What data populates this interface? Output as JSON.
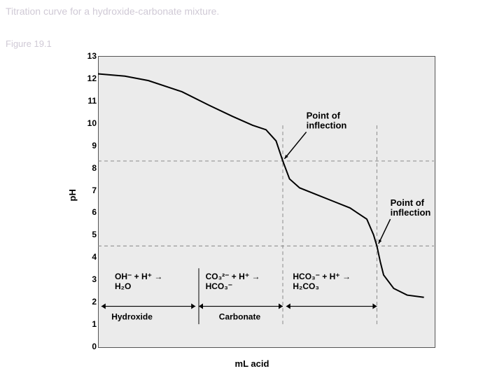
{
  "header": {
    "title": "Titration curve for a hydroxide-carbonate mixture.",
    "figure_label": "Figure 19.1"
  },
  "chart": {
    "type": "line",
    "ylabel": "pH",
    "xlabel": "mL acid",
    "ylim": [
      0,
      13
    ],
    "yticks": [
      0,
      1,
      2,
      3,
      4,
      5,
      6,
      7,
      8,
      9,
      10,
      11,
      12,
      13
    ],
    "background_color": "#ebebeb",
    "grid_color": "#555555",
    "curve_color": "#000000",
    "curve_width": 2,
    "dash_color": "#888888",
    "curve_points": [
      {
        "x": 0.0,
        "y": 12.2
      },
      {
        "x": 0.08,
        "y": 12.1
      },
      {
        "x": 0.15,
        "y": 11.9
      },
      {
        "x": 0.25,
        "y": 11.4
      },
      {
        "x": 0.33,
        "y": 10.8
      },
      {
        "x": 0.4,
        "y": 10.3
      },
      {
        "x": 0.46,
        "y": 9.9
      },
      {
        "x": 0.5,
        "y": 9.7
      },
      {
        "x": 0.53,
        "y": 9.2
      },
      {
        "x": 0.55,
        "y": 8.3
      },
      {
        "x": 0.57,
        "y": 7.5
      },
      {
        "x": 0.6,
        "y": 7.1
      },
      {
        "x": 0.65,
        "y": 6.8
      },
      {
        "x": 0.7,
        "y": 6.5
      },
      {
        "x": 0.75,
        "y": 6.2
      },
      {
        "x": 0.8,
        "y": 5.7
      },
      {
        "x": 0.82,
        "y": 5.0
      },
      {
        "x": 0.83,
        "y": 4.5
      },
      {
        "x": 0.84,
        "y": 3.8
      },
      {
        "x": 0.85,
        "y": 3.2
      },
      {
        "x": 0.88,
        "y": 2.6
      },
      {
        "x": 0.92,
        "y": 2.3
      },
      {
        "x": 0.97,
        "y": 2.2
      }
    ],
    "dashed_h_lines": [
      8.3,
      4.5
    ],
    "dashed_v_lines": [
      0.55,
      0.83
    ],
    "annotations": {
      "inflection1": "Point of\ninflection",
      "inflection2": "Point of\ninflection",
      "region1_rxn": "OH⁻ + H⁺ →\nH₂O",
      "region2_rxn": "CO₃²⁻ + H⁺ →\nHCO₃⁻",
      "region3_rxn": "HCO₃⁻ + H⁺ →\nH₂CO₃",
      "region1_label": "Hydroxide",
      "region2_label": "Carbonate"
    }
  }
}
